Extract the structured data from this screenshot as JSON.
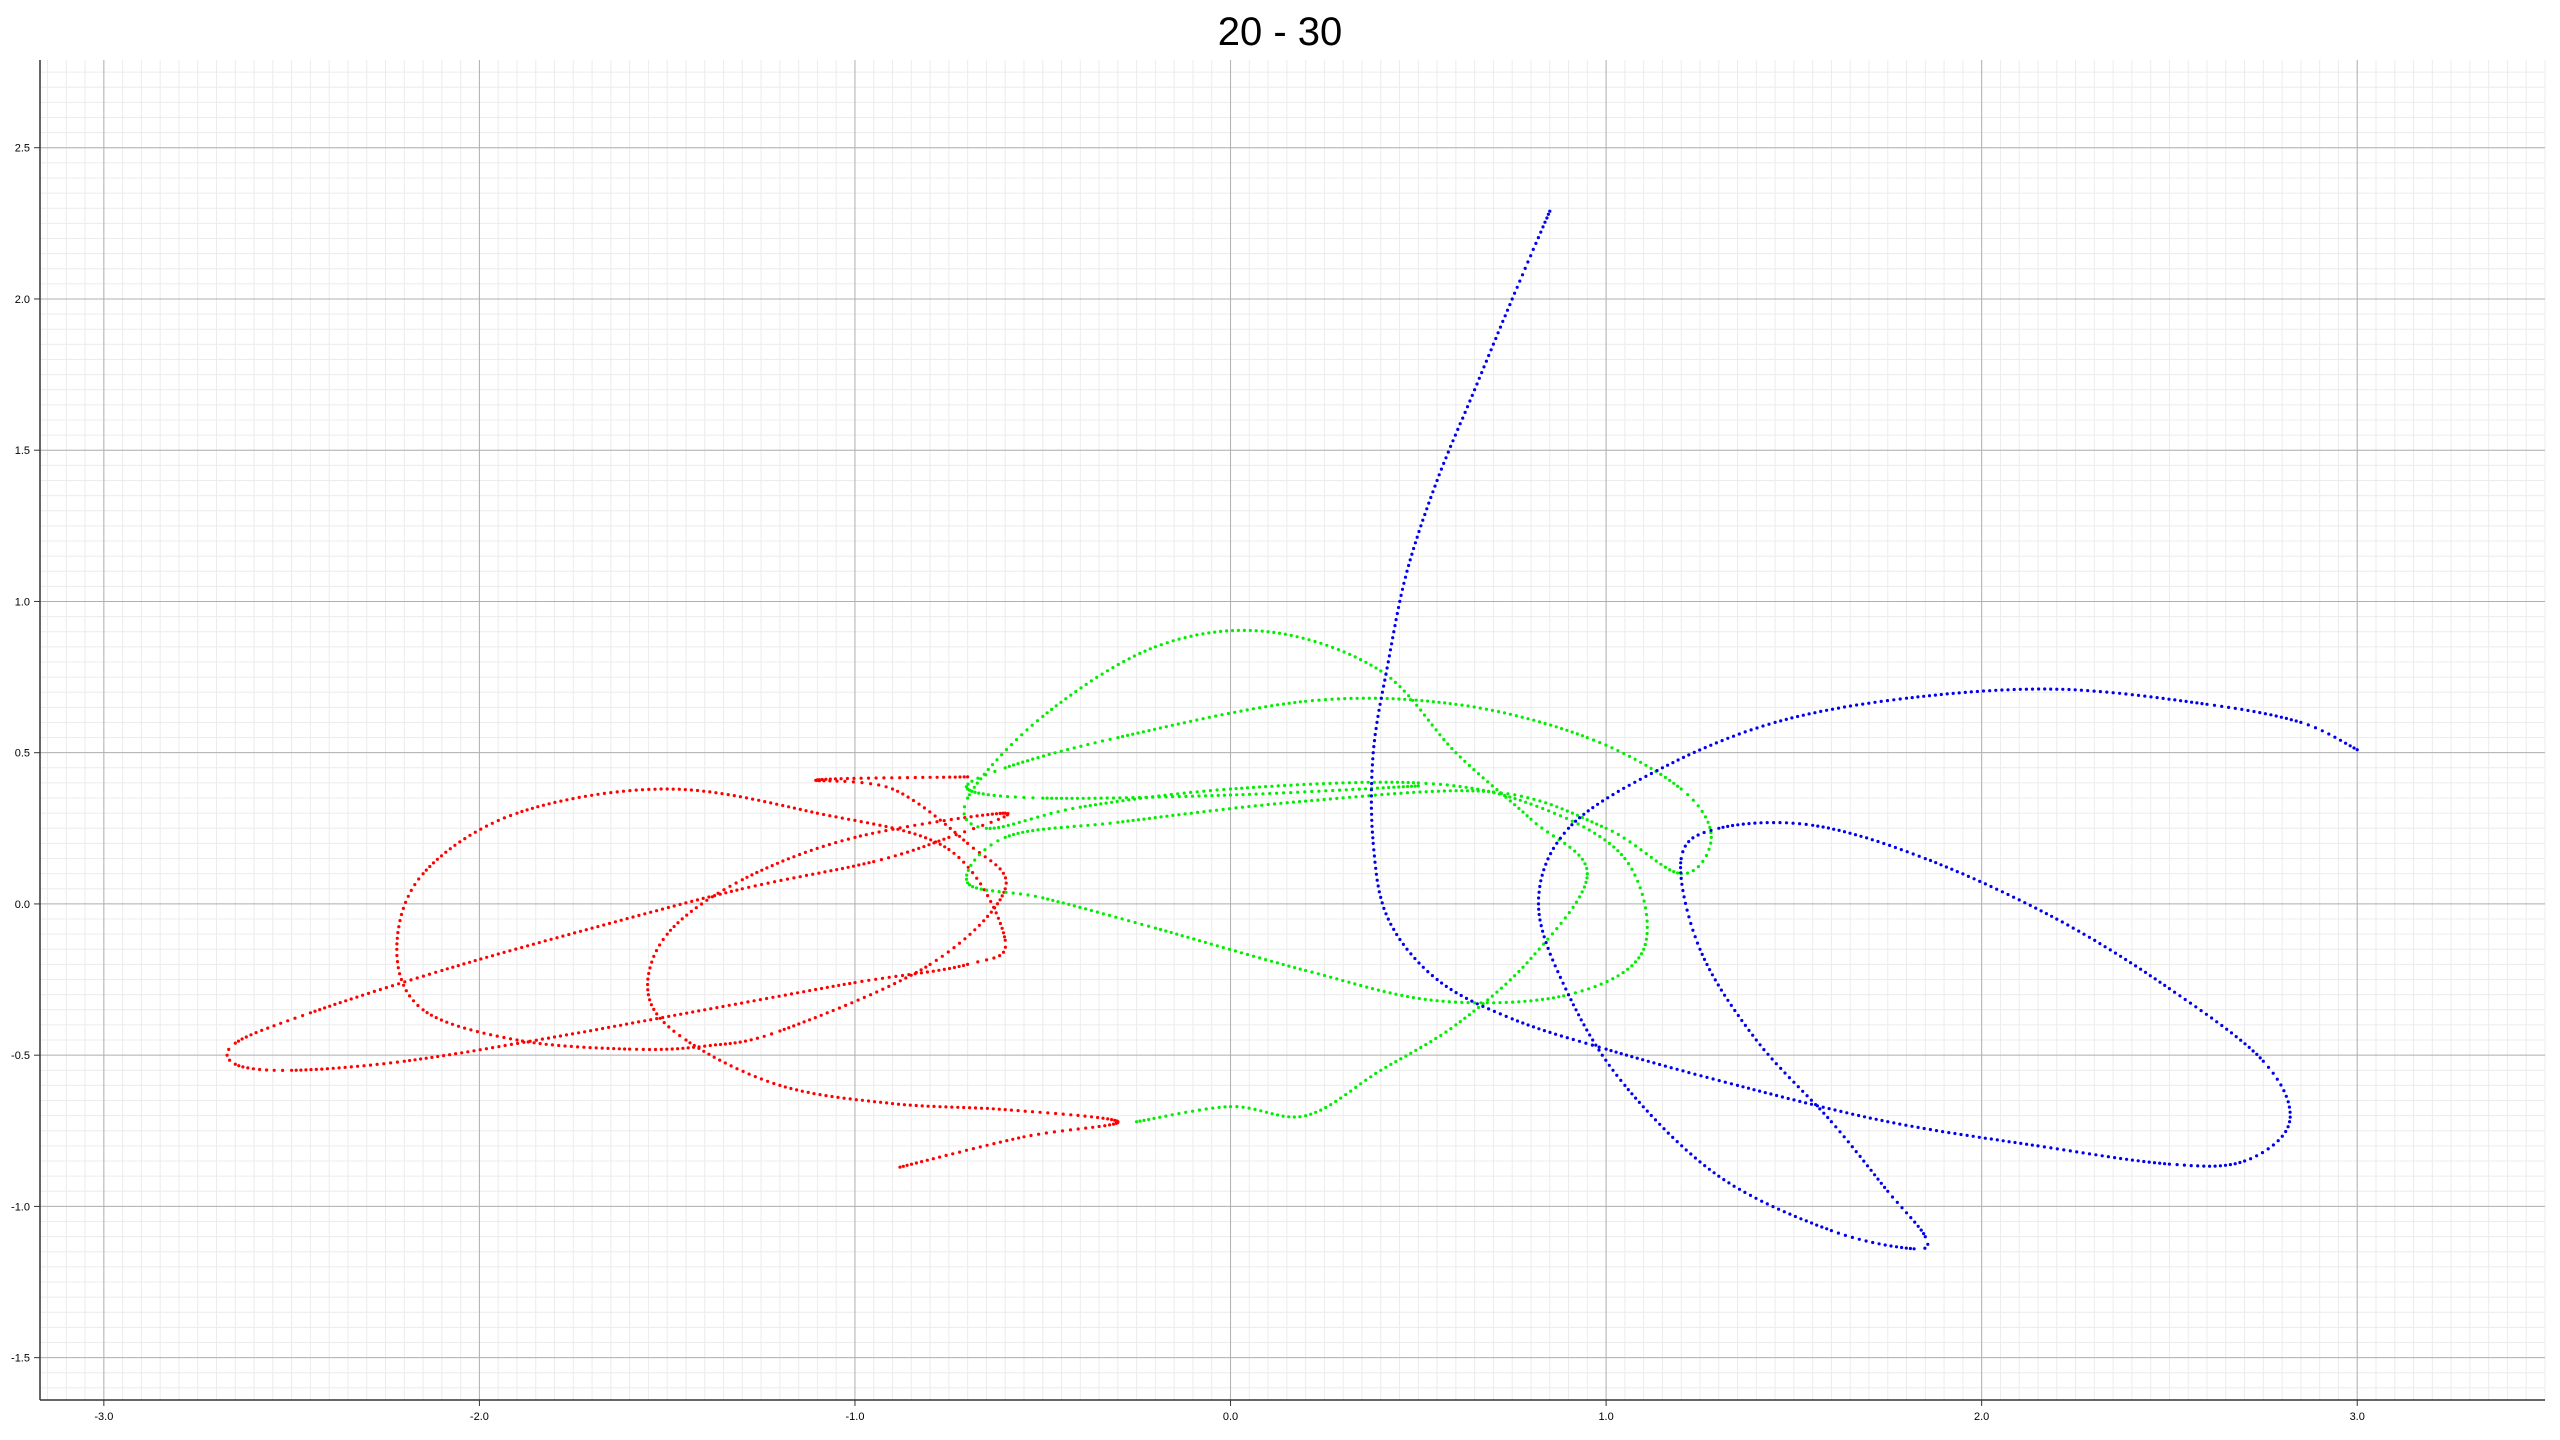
{
  "chart_data": {
    "type": "scatter",
    "title": "20 - 30",
    "xlabel": "",
    "ylabel": "",
    "xlim": [
      -3.17,
      3.5
    ],
    "ylim": [
      -1.64,
      2.79
    ],
    "grid": true,
    "minor_grid": true,
    "x_ticks": [
      -3.0,
      -2.0,
      -1.0,
      0.0,
      1.0,
      2.0,
      3.0
    ],
    "x_tick_labels": [
      "-3.0",
      "-2.0",
      "-1.0",
      "0.0",
      "1.0",
      "2.0",
      "3.0"
    ],
    "y_ticks": [
      -1.5,
      -1.0,
      -0.5,
      0.0,
      0.5,
      1.0,
      1.5,
      2.0,
      2.5
    ],
    "y_tick_labels": [
      "-1.5",
      "-1.0",
      "-0.5",
      "0.0",
      "0.5",
      "1.0",
      "1.5",
      "2.0",
      "2.5"
    ],
    "series": [
      {
        "color": "#ff0000",
        "points": [
          [
            -0.88,
            -0.87
          ],
          [
            -0.55,
            -0.77
          ],
          [
            -0.3,
            -0.72
          ],
          [
            -0.6,
            -0.68
          ],
          [
            -0.9,
            -0.66
          ],
          [
            -1.2,
            -0.6
          ],
          [
            -1.45,
            -0.45
          ],
          [
            -1.55,
            -0.3
          ],
          [
            -1.5,
            -0.1
          ],
          [
            -1.3,
            0.08
          ],
          [
            -1.0,
            0.22
          ],
          [
            -0.6,
            0.3
          ],
          [
            -0.75,
            0.22
          ],
          [
            -0.95,
            0.14
          ],
          [
            -1.3,
            0.05
          ],
          [
            -1.7,
            -0.08
          ],
          [
            -2.1,
            -0.22
          ],
          [
            -2.45,
            -0.36
          ],
          [
            -2.65,
            -0.46
          ],
          [
            -2.65,
            -0.53
          ],
          [
            -2.5,
            -0.55
          ],
          [
            -2.2,
            -0.52
          ],
          [
            -1.8,
            -0.44
          ],
          [
            -1.4,
            -0.35
          ],
          [
            -1.0,
            -0.26
          ],
          [
            -0.7,
            -0.2
          ],
          [
            -0.6,
            -0.12
          ],
          [
            -0.75,
            0.18
          ],
          [
            -1.1,
            0.3
          ],
          [
            -1.5,
            0.38
          ],
          [
            -1.9,
            0.3
          ],
          [
            -2.15,
            0.1
          ],
          [
            -2.22,
            -0.15
          ],
          [
            -2.15,
            -0.35
          ],
          [
            -1.9,
            -0.45
          ],
          [
            -1.6,
            -0.48
          ],
          [
            -1.4,
            -0.47
          ],
          [
            -1.2,
            -0.42
          ],
          [
            -0.8,
            -0.2
          ],
          [
            -0.6,
            0.05
          ],
          [
            -0.7,
            0.2
          ],
          [
            -0.9,
            0.38
          ],
          [
            -1.1,
            0.41
          ],
          [
            -0.7,
            0.42
          ]
        ]
      },
      {
        "color": "#00ee00",
        "points": [
          [
            -0.25,
            -0.72
          ],
          [
            0.0,
            -0.67
          ],
          [
            0.2,
            -0.7
          ],
          [
            0.4,
            -0.55
          ],
          [
            0.6,
            -0.4
          ],
          [
            0.8,
            -0.18
          ],
          [
            0.95,
            0.1
          ],
          [
            0.8,
            0.28
          ],
          [
            0.6,
            0.5
          ],
          [
            0.4,
            0.77
          ],
          [
            0.1,
            0.9
          ],
          [
            -0.2,
            0.85
          ],
          [
            -0.5,
            0.62
          ],
          [
            -0.7,
            0.35
          ],
          [
            -0.65,
            0.25
          ],
          [
            -0.4,
            0.32
          ],
          [
            0.0,
            0.38
          ],
          [
            0.5,
            0.4
          ],
          [
            0.8,
            0.33
          ],
          [
            1.05,
            0.15
          ],
          [
            1.1,
            -0.15
          ],
          [
            0.9,
            -0.3
          ],
          [
            0.55,
            -0.32
          ],
          [
            0.2,
            -0.22
          ],
          [
            -0.2,
            -0.08
          ],
          [
            -0.5,
            0.02
          ],
          [
            -0.7,
            0.07
          ],
          [
            -0.6,
            0.22
          ],
          [
            -0.3,
            0.27
          ],
          [
            0.2,
            0.34
          ],
          [
            0.7,
            0.37
          ],
          [
            1.0,
            0.25
          ],
          [
            1.2,
            0.1
          ],
          [
            1.28,
            0.22
          ],
          [
            1.2,
            0.38
          ],
          [
            0.95,
            0.55
          ],
          [
            0.6,
            0.66
          ],
          [
            0.2,
            0.67
          ],
          [
            -0.3,
            0.55
          ],
          [
            -0.6,
            0.45
          ],
          [
            -0.7,
            0.38
          ],
          [
            -0.5,
            0.35
          ],
          [
            0.0,
            0.36
          ],
          [
            0.5,
            0.39
          ]
        ]
      },
      {
        "color": "#0000ee",
        "points": [
          [
            0.85,
            2.29
          ],
          [
            0.75,
            2.0
          ],
          [
            0.65,
            1.7
          ],
          [
            0.55,
            1.4
          ],
          [
            0.47,
            1.1
          ],
          [
            0.42,
            0.8
          ],
          [
            0.38,
            0.5
          ],
          [
            0.38,
            0.2
          ],
          [
            0.42,
            -0.05
          ],
          [
            0.55,
            -0.25
          ],
          [
            0.75,
            -0.38
          ],
          [
            1.0,
            -0.48
          ],
          [
            1.35,
            -0.6
          ],
          [
            1.75,
            -0.72
          ],
          [
            2.15,
            -0.8
          ],
          [
            2.5,
            -0.86
          ],
          [
            2.7,
            -0.85
          ],
          [
            2.82,
            -0.72
          ],
          [
            2.75,
            -0.52
          ],
          [
            2.5,
            -0.28
          ],
          [
            2.2,
            -0.05
          ],
          [
            1.85,
            0.15
          ],
          [
            1.55,
            0.26
          ],
          [
            1.3,
            0.25
          ],
          [
            1.2,
            0.15
          ],
          [
            1.25,
            -0.15
          ],
          [
            1.4,
            -0.45
          ],
          [
            1.6,
            -0.72
          ],
          [
            1.75,
            -0.95
          ],
          [
            1.85,
            -1.1
          ],
          [
            1.82,
            -1.14
          ],
          [
            1.6,
            -1.08
          ],
          [
            1.3,
            -0.9
          ],
          [
            1.05,
            -0.6
          ],
          [
            0.9,
            -0.3
          ],
          [
            0.82,
            0.0
          ],
          [
            0.9,
            0.25
          ],
          [
            1.15,
            0.45
          ],
          [
            1.45,
            0.6
          ],
          [
            1.8,
            0.68
          ],
          [
            2.2,
            0.71
          ],
          [
            2.6,
            0.66
          ],
          [
            2.85,
            0.6
          ],
          [
            3.0,
            0.51
          ]
        ]
      }
    ]
  }
}
